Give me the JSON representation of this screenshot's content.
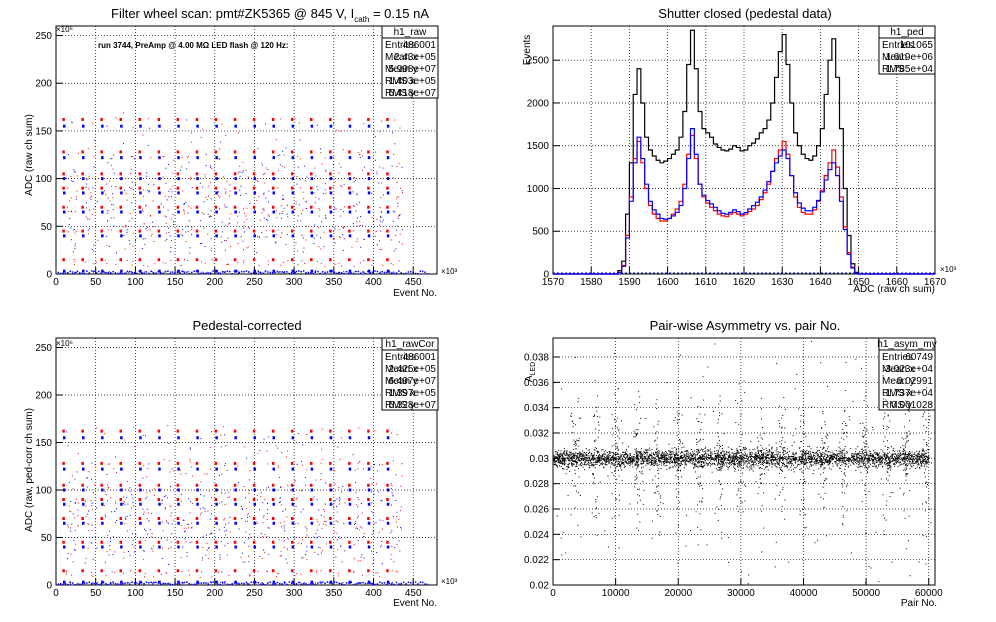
{
  "chart_data": [
    {
      "type": "scatter",
      "title": "Filter wheel scan: pmt#ZK5365 @   845 V, I",
      "title_sub": "cath",
      "title_tail": " = 0.15 nA",
      "xlabel": "Event No.",
      "ylabel": "ADC (raw ch sum)",
      "xlim": [
        0,
        480
      ],
      "ylim": [
        0,
        260
      ],
      "x_multiplier": "×10³",
      "y_multiplier": "×10⁶",
      "x_ticks": [
        "0",
        "50",
        "100",
        "150",
        "200",
        "250",
        "300",
        "350",
        "400",
        "450"
      ],
      "y_ticks": [
        "0",
        "50",
        "100",
        "150",
        "200",
        "250"
      ],
      "annotation": "run 3744, PreAmp @ 4.00 MΩ LED flash @  120 Hz:",
      "grid": true,
      "series": [
        {
          "color": "#ff0000",
          "levels": [
            15,
            45,
            70,
            90,
            105,
            128,
            162
          ]
        },
        {
          "color": "#0000ff",
          "levels": [
            3,
            40,
            65,
            85,
            100,
            122,
            155
          ]
        }
      ],
      "blocks_x": [
        8,
        32,
        56,
        80,
        104,
        128,
        152,
        176,
        200,
        224,
        248,
        272,
        296,
        320,
        344,
        368,
        392,
        416
      ],
      "stats": {
        "name": "h1_raw",
        "rows": [
          [
            "Entries",
            "486001"
          ],
          [
            "Mean x",
            "2.43e+05"
          ],
          [
            "Mean y",
            "5.998e+07"
          ],
          [
            "RMS x",
            "1.403e+05"
          ],
          [
            "RMS y",
            "5.418e+07"
          ]
        ]
      }
    },
    {
      "type": "line",
      "title": "Shutter closed (pedestal data)",
      "xlabel": "ADC (raw ch sum)",
      "ylabel": "Events",
      "xlim": [
        1570,
        1670
      ],
      "ylim": [
        0,
        2900
      ],
      "x_multiplier": "×10³",
      "x_ticks": [
        "1570",
        "1580",
        "1590",
        "1600",
        "1610",
        "1620",
        "1630",
        "1640",
        "1650",
        "1660",
        "1670"
      ],
      "y_ticks": [
        "0",
        "500",
        "1000",
        "1500",
        "2000",
        "2500"
      ],
      "grid": true,
      "series": [
        {
          "color": "#000000",
          "points": [
            [
              1570,
              0
            ],
            [
              1586,
              0
            ],
            [
              1587,
              40
            ],
            [
              1588,
              150
            ],
            [
              1589,
              700
            ],
            [
              1590,
              1300
            ],
            [
              1591,
              2100
            ],
            [
              1592,
              2400
            ],
            [
              1593,
              2000
            ],
            [
              1594,
              1600
            ],
            [
              1595,
              1450
            ],
            [
              1596,
              1380
            ],
            [
              1597,
              1330
            ],
            [
              1598,
              1300
            ],
            [
              1599,
              1320
            ],
            [
              1600,
              1350
            ],
            [
              1601,
              1400
            ],
            [
              1602,
              1450
            ],
            [
              1603,
              1600
            ],
            [
              1604,
              1900
            ],
            [
              1605,
              2450
            ],
            [
              1606,
              2850
            ],
            [
              1607,
              2400
            ],
            [
              1608,
              1900
            ],
            [
              1609,
              1700
            ],
            [
              1610,
              1650
            ],
            [
              1611,
              1600
            ],
            [
              1612,
              1520
            ],
            [
              1613,
              1480
            ],
            [
              1614,
              1450
            ],
            [
              1615,
              1440
            ],
            [
              1616,
              1460
            ],
            [
              1617,
              1500
            ],
            [
              1618,
              1480
            ],
            [
              1619,
              1440
            ],
            [
              1620,
              1450
            ],
            [
              1621,
              1500
            ],
            [
              1622,
              1530
            ],
            [
              1623,
              1580
            ],
            [
              1624,
              1650
            ],
            [
              1625,
              1700
            ],
            [
              1626,
              1800
            ],
            [
              1627,
              2000
            ],
            [
              1628,
              2300
            ],
            [
              1629,
              2600
            ],
            [
              1630,
              2800
            ],
            [
              1631,
              2450
            ],
            [
              1632,
              2000
            ],
            [
              1633,
              1650
            ],
            [
              1634,
              1500
            ],
            [
              1635,
              1400
            ],
            [
              1636,
              1350
            ],
            [
              1637,
              1330
            ],
            [
              1638,
              1380
            ],
            [
              1639,
              1500
            ],
            [
              1640,
              1700
            ],
            [
              1641,
              2100
            ],
            [
              1642,
              2500
            ],
            [
              1643,
              2750
            ],
            [
              1644,
              2300
            ],
            [
              1645,
              1700
            ],
            [
              1646,
              1000
            ],
            [
              1647,
              450
            ],
            [
              1648,
              120
            ],
            [
              1649,
              20
            ],
            [
              1650,
              0
            ],
            [
              1670,
              0
            ]
          ]
        },
        {
          "color": "#ff0000",
          "points": [
            [
              1570,
              0
            ],
            [
              1586,
              0
            ],
            [
              1587,
              20
            ],
            [
              1588,
              100
            ],
            [
              1589,
              450
            ],
            [
              1590,
              900
            ],
            [
              1591,
              1350
            ],
            [
              1592,
              1550
            ],
            [
              1593,
              1300
            ],
            [
              1594,
              1000
            ],
            [
              1595,
              800
            ],
            [
              1596,
              700
            ],
            [
              1597,
              650
            ],
            [
              1598,
              620
            ],
            [
              1599,
              620
            ],
            [
              1600,
              650
            ],
            [
              1601,
              700
            ],
            [
              1602,
              760
            ],
            [
              1603,
              850
            ],
            [
              1604,
              1050
            ],
            [
              1605,
              1400
            ],
            [
              1606,
              1620
            ],
            [
              1607,
              1350
            ],
            [
              1608,
              1050
            ],
            [
              1609,
              900
            ],
            [
              1610,
              830
            ],
            [
              1611,
              780
            ],
            [
              1612,
              740
            ],
            [
              1613,
              700
            ],
            [
              1614,
              680
            ],
            [
              1615,
              670
            ],
            [
              1616,
              700
            ],
            [
              1617,
              720
            ],
            [
              1618,
              700
            ],
            [
              1619,
              680
            ],
            [
              1620,
              700
            ],
            [
              1621,
              730
            ],
            [
              1622,
              760
            ],
            [
              1623,
              800
            ],
            [
              1624,
              870
            ],
            [
              1625,
              950
            ],
            [
              1626,
              1050
            ],
            [
              1627,
              1200
            ],
            [
              1628,
              1350
            ],
            [
              1629,
              1450
            ],
            [
              1630,
              1550
            ],
            [
              1631,
              1400
            ],
            [
              1632,
              1150
            ],
            [
              1633,
              900
            ],
            [
              1634,
              780
            ],
            [
              1635,
              720
            ],
            [
              1636,
              700
            ],
            [
              1637,
              700
            ],
            [
              1638,
              750
            ],
            [
              1639,
              850
            ],
            [
              1640,
              980
            ],
            [
              1641,
              1150
            ],
            [
              1642,
              1300
            ],
            [
              1643,
              1450
            ],
            [
              1644,
              1250
            ],
            [
              1645,
              900
            ],
            [
              1646,
              550
            ],
            [
              1647,
              250
            ],
            [
              1648,
              80
            ],
            [
              1649,
              10
            ],
            [
              1650,
              0
            ],
            [
              1670,
              0
            ]
          ]
        },
        {
          "color": "#0000ff",
          "points": [
            [
              1570,
              0
            ],
            [
              1586,
              0
            ],
            [
              1587,
              20
            ],
            [
              1588,
              90
            ],
            [
              1589,
              420
            ],
            [
              1590,
              850
            ],
            [
              1591,
              1300
            ],
            [
              1592,
              1600
            ],
            [
              1593,
              1350
            ],
            [
              1594,
              1050
            ],
            [
              1595,
              850
            ],
            [
              1596,
              750
            ],
            [
              1597,
              700
            ],
            [
              1598,
              650
            ],
            [
              1599,
              640
            ],
            [
              1600,
              650
            ],
            [
              1601,
              680
            ],
            [
              1602,
              720
            ],
            [
              1603,
              800
            ],
            [
              1604,
              1000
            ],
            [
              1605,
              1350
            ],
            [
              1606,
              1700
            ],
            [
              1607,
              1400
            ],
            [
              1608,
              1050
            ],
            [
              1609,
              920
            ],
            [
              1610,
              860
            ],
            [
              1611,
              820
            ],
            [
              1612,
              780
            ],
            [
              1613,
              740
            ],
            [
              1614,
              710
            ],
            [
              1615,
              700
            ],
            [
              1616,
              720
            ],
            [
              1617,
              750
            ],
            [
              1618,
              730
            ],
            [
              1619,
              700
            ],
            [
              1620,
              720
            ],
            [
              1621,
              760
            ],
            [
              1622,
              800
            ],
            [
              1623,
              840
            ],
            [
              1624,
              900
            ],
            [
              1625,
              980
            ],
            [
              1626,
              1080
            ],
            [
              1627,
              1200
            ],
            [
              1628,
              1300
            ],
            [
              1629,
              1380
            ],
            [
              1630,
              1450
            ],
            [
              1631,
              1350
            ],
            [
              1632,
              1150
            ],
            [
              1633,
              950
            ],
            [
              1634,
              830
            ],
            [
              1635,
              770
            ],
            [
              1636,
              740
            ],
            [
              1637,
              740
            ],
            [
              1638,
              780
            ],
            [
              1639,
              860
            ],
            [
              1640,
              960
            ],
            [
              1641,
              1100
            ],
            [
              1642,
              1220
            ],
            [
              1643,
              1300
            ],
            [
              1644,
              1150
            ],
            [
              1645,
              850
            ],
            [
              1646,
              520
            ],
            [
              1647,
              230
            ],
            [
              1648,
              70
            ],
            [
              1649,
              10
            ],
            [
              1650,
              0
            ],
            [
              1670,
              0
            ]
          ]
        }
      ],
      "stats": {
        "name": "h1_ped",
        "rows": [
          [
            "Entries",
            "101065"
          ],
          [
            "Mean",
            "1.619e+06"
          ],
          [
            "RMS",
            "1.785e+04"
          ]
        ]
      }
    },
    {
      "type": "scatter",
      "title": "Pedestal-corrected",
      "xlabel": "Event No.",
      "ylabel": "ADC (raw, ped-corr ch sum)",
      "xlim": [
        0,
        480
      ],
      "ylim": [
        0,
        260
      ],
      "x_multiplier": "×10³",
      "y_multiplier": "×10⁶",
      "x_ticks": [
        "0",
        "50",
        "100",
        "150",
        "200",
        "250",
        "300",
        "350",
        "400",
        "450"
      ],
      "y_ticks": [
        "0",
        "50",
        "100",
        "150",
        "200",
        "250"
      ],
      "grid": true,
      "series": [
        {
          "color": "#ff0000",
          "levels": [
            15,
            45,
            70,
            90,
            105,
            128,
            162
          ]
        },
        {
          "color": "#0000ff",
          "levels": [
            3,
            40,
            65,
            85,
            100,
            122,
            155
          ]
        }
      ],
      "blocks_x": [
        8,
        32,
        56,
        80,
        104,
        128,
        152,
        176,
        200,
        224,
        248,
        272,
        296,
        320,
        344,
        368,
        392,
        416
      ],
      "stats": {
        "name": "h1_rawCor",
        "rows": [
          [
            "Entries",
            "486001"
          ],
          [
            "Mean x",
            "2.425e+05"
          ],
          [
            "Mean y",
            "6.497e+07"
          ],
          [
            "RMS x",
            "1.397e+05"
          ],
          [
            "RMS y",
            "5.328e+07"
          ]
        ]
      }
    },
    {
      "type": "scatter",
      "title": "Pair-wise Asymmetry vs. pair No.",
      "xlabel": "Pair No.",
      "ylabel": "A",
      "ylabel_sub": "LED",
      "xlim": [
        0,
        61000
      ],
      "ylim": [
        0.02,
        0.0395
      ],
      "x_ticks": [
        "0",
        "10000",
        "20000",
        "30000",
        "40000",
        "50000",
        "60000"
      ],
      "y_ticks": [
        "0.02",
        "0.022",
        "0.024",
        "0.026",
        "0.028",
        "0.03",
        "0.032",
        "0.034",
        "0.036",
        "0.038"
      ],
      "grid": true,
      "series": [
        {
          "color": "#000000",
          "center": 0.03,
          "rms": 0.001028
        }
      ],
      "stats": {
        "name": "h1_asym_my",
        "rows": [
          [
            "Entries",
            "60749"
          ],
          [
            "Mean x",
            "3.023e+04"
          ],
          [
            "Mean y",
            "0.02991"
          ],
          [
            "RMS x",
            "1.737e+04"
          ],
          [
            "RMS y",
            "0.001028"
          ]
        ]
      }
    }
  ]
}
